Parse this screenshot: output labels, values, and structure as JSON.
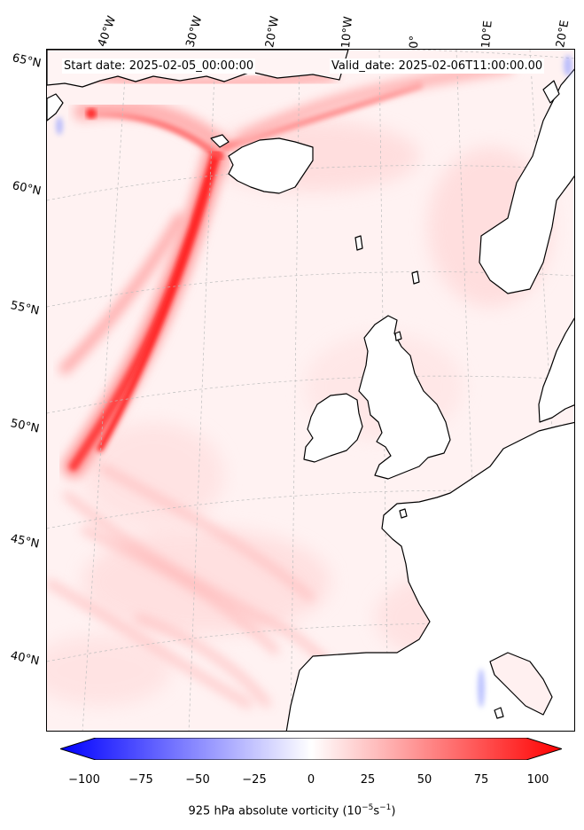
{
  "header": {
    "start_date": "Start date: 2025-02-05_00:00:00",
    "valid_date": "Valid_date: 2025-02-06T11:00:00.00"
  },
  "longitude_labels": [
    "40°W",
    "30°W",
    "20°W",
    "10°W",
    "0°",
    "10°E",
    "20°E"
  ],
  "latitude_labels": [
    "65°N",
    "60°N",
    "55°N",
    "50°N",
    "45°N",
    "40°N"
  ],
  "colorbar": {
    "ticks": [
      "−100",
      "−75",
      "−50",
      "−25",
      "0",
      "25",
      "50",
      "75",
      "100"
    ],
    "label_text": "925 hPa absolute vorticity (10",
    "label_exp1": "−5",
    "label_mid": "s",
    "label_exp2": "−1",
    "label_close": ")",
    "min": -100,
    "max": 100,
    "negative_color": "#0000ff",
    "positive_color": "#ff0000"
  },
  "map_colors": {
    "background": "#fff2f2",
    "land": "#ffffff",
    "coastline": "#000000",
    "strong_vorticity": "#ff0000"
  }
}
